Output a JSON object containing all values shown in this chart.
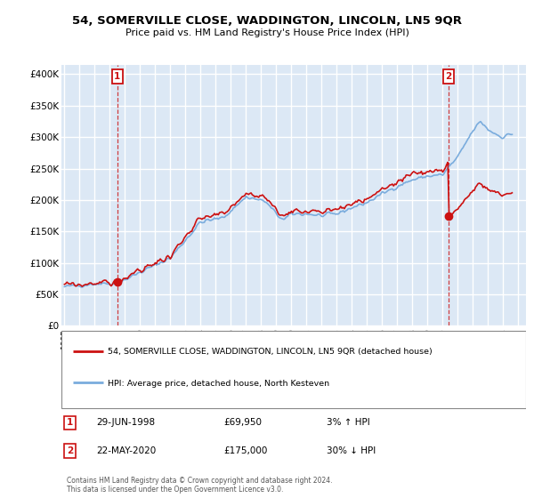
{
  "title": "54, SOMERVILLE CLOSE, WADDINGTON, LINCOLN, LN5 9QR",
  "subtitle": "Price paid vs. HM Land Registry's House Price Index (HPI)",
  "background_color": "#ffffff",
  "plot_bg_color": "#dce8f5",
  "grid_color": "#ffffff",
  "hpi_color": "#7aacdd",
  "property_color": "#cc1111",
  "ylim": [
    0,
    415000
  ],
  "yticks": [
    0,
    50000,
    100000,
    150000,
    200000,
    250000,
    300000,
    350000,
    400000
  ],
  "ytick_labels": [
    "£0",
    "£50K",
    "£100K",
    "£150K",
    "£200K",
    "£250K",
    "£300K",
    "£350K",
    "£400K"
  ],
  "xmin": 1994.8,
  "xmax": 2025.5,
  "transaction1_x": 1998.5,
  "transaction1_y": 69950,
  "transaction2_x": 2020.38,
  "transaction2_y": 175000,
  "legend_property": "54, SOMERVILLE CLOSE, WADDINGTON, LINCOLN, LN5 9QR (detached house)",
  "legend_hpi": "HPI: Average price, detached house, North Kesteven",
  "note1_label": "1",
  "note1_date": "29-JUN-1998",
  "note1_price": "£69,950",
  "note1_hpi": "3% ↑ HPI",
  "note2_label": "2",
  "note2_date": "22-MAY-2020",
  "note2_price": "£175,000",
  "note2_hpi": "30% ↓ HPI",
  "footer": "Contains HM Land Registry data © Crown copyright and database right 2024.\nThis data is licensed under the Open Government Licence v3.0."
}
